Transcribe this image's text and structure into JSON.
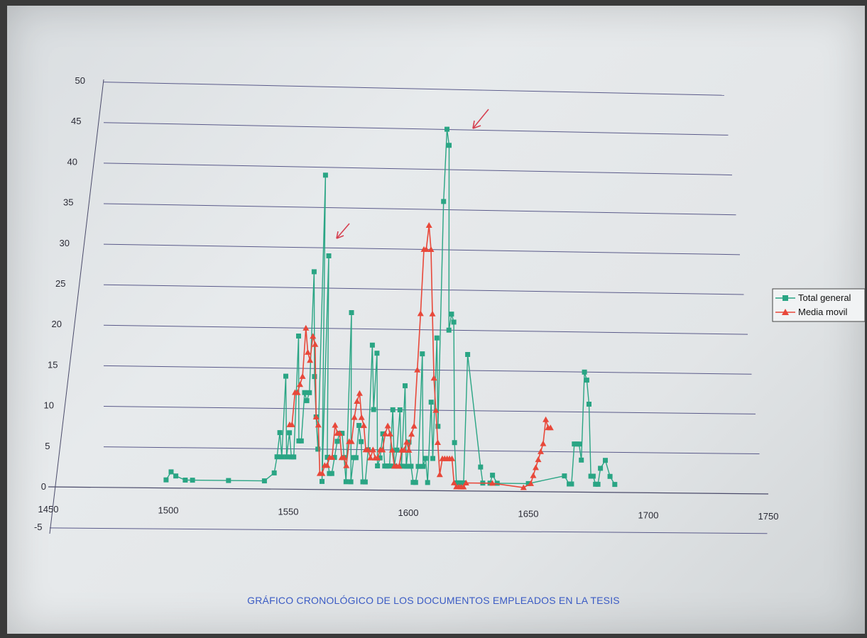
{
  "caption": "GRÁFICO CRONOLÓGICO DE LOS DOCUMENTOS EMPLEADOS EN LA TESIS",
  "colors": {
    "total": "#2aa584",
    "media": "#e8483a",
    "grid": "#5a5a8a",
    "annotation": "#d64050"
  },
  "chart_data": {
    "type": "line",
    "title": "",
    "xlabel": "",
    "ylabel": "",
    "xlim": [
      1450,
      1750
    ],
    "ylim": [
      -5,
      50
    ],
    "x_ticks": [
      "1450",
      "1500",
      "1550",
      "1600",
      "1650",
      "1700",
      "1750"
    ],
    "y_ticks": [
      "-5",
      "0",
      "5",
      "10",
      "15",
      "20",
      "25",
      "30",
      "35",
      "40",
      "45",
      "50"
    ],
    "grid": "horizontal",
    "legend_position": "right",
    "series": [
      {
        "name": "Total general",
        "marker": "square",
        "points": [
          [
            1499,
            1
          ],
          [
            1501,
            2
          ],
          [
            1503,
            1.5
          ],
          [
            1507,
            1
          ],
          [
            1510,
            1
          ],
          [
            1525,
            1
          ],
          [
            1540,
            1
          ],
          [
            1544,
            2
          ],
          [
            1545,
            4
          ],
          [
            1546,
            7
          ],
          [
            1547,
            4
          ],
          [
            1548,
            14
          ],
          [
            1549,
            4
          ],
          [
            1550,
            7
          ],
          [
            1551,
            4
          ],
          [
            1552,
            4
          ],
          [
            1553,
            19
          ],
          [
            1554,
            6
          ],
          [
            1555,
            6
          ],
          [
            1556,
            12
          ],
          [
            1557,
            11
          ],
          [
            1558,
            12
          ],
          [
            1559,
            27
          ],
          [
            1560,
            14
          ],
          [
            1561,
            9
          ],
          [
            1562,
            5
          ],
          [
            1563,
            39
          ],
          [
            1564,
            1
          ],
          [
            1565,
            29
          ],
          [
            1566,
            4
          ],
          [
            1567,
            2
          ],
          [
            1568,
            2
          ],
          [
            1569,
            4
          ],
          [
            1570,
            6
          ],
          [
            1571,
            7
          ],
          [
            1572,
            7
          ],
          [
            1573,
            4
          ],
          [
            1574,
            1
          ],
          [
            1575,
            22
          ],
          [
            1576,
            1
          ],
          [
            1577,
            4
          ],
          [
            1578,
            4
          ],
          [
            1579,
            8
          ],
          [
            1580,
            6
          ],
          [
            1581,
            1
          ],
          [
            1582,
            1
          ],
          [
            1583,
            5
          ],
          [
            1584,
            18
          ],
          [
            1585,
            10
          ],
          [
            1586,
            17
          ],
          [
            1587,
            3
          ],
          [
            1588,
            4
          ],
          [
            1589,
            7
          ],
          [
            1590,
            3
          ],
          [
            1591,
            3
          ],
          [
            1592,
            3
          ],
          [
            1593,
            10
          ],
          [
            1594,
            3
          ],
          [
            1595,
            5
          ],
          [
            1596,
            10
          ],
          [
            1597,
            3
          ],
          [
            1598,
            13
          ],
          [
            1599,
            3
          ],
          [
            1600,
            6
          ],
          [
            1601,
            3
          ],
          [
            1602,
            1
          ],
          [
            1603,
            1
          ],
          [
            1604,
            3
          ],
          [
            1605,
            17
          ],
          [
            1606,
            3
          ],
          [
            1607,
            4
          ],
          [
            1608,
            1
          ],
          [
            1609,
            11
          ],
          [
            1610,
            4
          ],
          [
            1611,
            19
          ],
          [
            1612,
            8
          ],
          [
            1613,
            36
          ],
          [
            1614,
            45
          ],
          [
            1615,
            43
          ],
          [
            1616,
            20
          ],
          [
            1617,
            22
          ],
          [
            1618,
            21
          ],
          [
            1619,
            6
          ],
          [
            1620,
            1
          ],
          [
            1621,
            1
          ],
          [
            1622,
            1
          ],
          [
            1623,
            1
          ],
          [
            1624,
            17
          ],
          [
            1630,
            3
          ],
          [
            1631,
            1
          ],
          [
            1634,
            1
          ],
          [
            1635,
            2
          ],
          [
            1637,
            1
          ],
          [
            1650,
            1
          ],
          [
            1665,
            2
          ],
          [
            1667,
            1
          ],
          [
            1668,
            1
          ],
          [
            1669,
            6
          ],
          [
            1670,
            6
          ],
          [
            1671,
            6
          ],
          [
            1672,
            4
          ],
          [
            1673,
            15
          ],
          [
            1674,
            14
          ],
          [
            1675,
            11
          ],
          [
            1676,
            2
          ],
          [
            1677,
            2
          ],
          [
            1678,
            1
          ],
          [
            1679,
            1
          ],
          [
            1680,
            3
          ],
          [
            1682,
            4
          ],
          [
            1684,
            2
          ],
          [
            1686,
            1
          ]
        ]
      },
      {
        "name": "Media movil",
        "marker": "triangle",
        "points": [
          [
            1550,
            8
          ],
          [
            1551,
            8
          ],
          [
            1552,
            12
          ],
          [
            1553,
            12
          ],
          [
            1554,
            13
          ],
          [
            1555,
            14
          ],
          [
            1556,
            20
          ],
          [
            1557,
            17
          ],
          [
            1558,
            16
          ],
          [
            1559,
            19
          ],
          [
            1560,
            18
          ],
          [
            1561,
            9
          ],
          [
            1562,
            8
          ],
          [
            1563,
            2
          ],
          [
            1564,
            2
          ],
          [
            1565,
            3
          ],
          [
            1566,
            3
          ],
          [
            1567,
            4
          ],
          [
            1568,
            4
          ],
          [
            1569,
            8
          ],
          [
            1570,
            7
          ],
          [
            1571,
            7
          ],
          [
            1572,
            4
          ],
          [
            1573,
            4
          ],
          [
            1574,
            3
          ],
          [
            1575,
            6
          ],
          [
            1576,
            6
          ],
          [
            1577,
            9
          ],
          [
            1578,
            11
          ],
          [
            1579,
            12
          ],
          [
            1580,
            9
          ],
          [
            1581,
            8
          ],
          [
            1582,
            5
          ],
          [
            1583,
            5
          ],
          [
            1584,
            4
          ],
          [
            1585,
            5
          ],
          [
            1586,
            4
          ],
          [
            1587,
            4
          ],
          [
            1588,
            5
          ],
          [
            1589,
            5
          ],
          [
            1590,
            7
          ],
          [
            1591,
            8
          ],
          [
            1592,
            7
          ],
          [
            1593,
            5
          ],
          [
            1594,
            3
          ],
          [
            1595,
            3
          ],
          [
            1596,
            3
          ],
          [
            1597,
            5
          ],
          [
            1598,
            5
          ],
          [
            1599,
            6
          ],
          [
            1600,
            5
          ],
          [
            1601,
            7
          ],
          [
            1602,
            8
          ],
          [
            1603,
            15
          ],
          [
            1604,
            22
          ],
          [
            1605,
            30
          ],
          [
            1606,
            30
          ],
          [
            1607,
            33
          ],
          [
            1608,
            30
          ],
          [
            1609,
            22
          ],
          [
            1610,
            14
          ],
          [
            1611,
            10
          ],
          [
            1612,
            6
          ],
          [
            1613,
            2
          ],
          [
            1614,
            4
          ],
          [
            1615,
            4
          ],
          [
            1616,
            4
          ],
          [
            1617,
            4
          ],
          [
            1618,
            4
          ],
          [
            1619,
            1
          ],
          [
            1620,
            0.5
          ],
          [
            1621,
            0.5
          ],
          [
            1622,
            0.5
          ],
          [
            1623,
            0.5
          ],
          [
            1624,
            1
          ],
          [
            1635,
            1
          ],
          [
            1648,
            0.5
          ],
          [
            1651,
            1
          ],
          [
            1652,
            2
          ],
          [
            1653,
            3
          ],
          [
            1654,
            4
          ],
          [
            1655,
            5
          ],
          [
            1656,
            6
          ],
          [
            1657,
            9
          ],
          [
            1658,
            8
          ],
          [
            1659,
            8
          ]
        ]
      }
    ]
  }
}
